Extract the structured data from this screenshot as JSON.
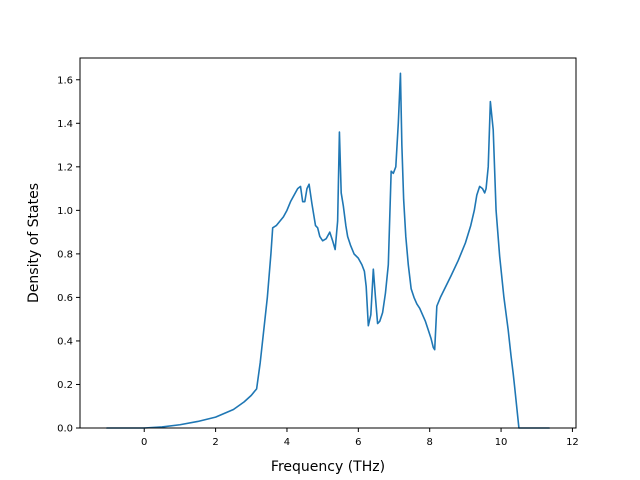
{
  "chart_data": {
    "type": "line",
    "title": "",
    "xlabel": "Frequency (THz)",
    "ylabel": "Density of States",
    "xlim": [
      -1.8,
      12.1
    ],
    "ylim": [
      0.0,
      1.7
    ],
    "xticks": [
      0,
      2,
      4,
      6,
      8,
      10,
      12
    ],
    "yticks": [
      0.0,
      0.2,
      0.4,
      0.6,
      0.8,
      1.0,
      1.2,
      1.4,
      1.6
    ],
    "xtick_labels": [
      "0",
      "2",
      "4",
      "6",
      "8",
      "10",
      "12"
    ],
    "ytick_labels": [
      "0.0",
      "0.2",
      "0.4",
      "0.6",
      "0.8",
      "1.0",
      "1.2",
      "1.4",
      "1.6"
    ],
    "grid": false,
    "series": [
      {
        "color": "#1f77b4",
        "x": [
          -1.05,
          -0.5,
          0.0,
          0.5,
          1.0,
          1.5,
          2.0,
          2.5,
          2.8,
          3.0,
          3.15,
          3.25,
          3.35,
          3.45,
          3.55,
          3.6,
          3.7,
          3.8,
          3.9,
          4.0,
          4.1,
          4.2,
          4.3,
          4.38,
          4.44,
          4.5,
          4.56,
          4.62,
          4.7,
          4.8,
          4.86,
          4.92,
          5.0,
          5.1,
          5.2,
          5.28,
          5.35,
          5.42,
          5.47,
          5.52,
          5.58,
          5.65,
          5.7,
          5.78,
          5.88,
          6.0,
          6.1,
          6.17,
          6.22,
          6.28,
          6.35,
          6.42,
          6.48,
          6.54,
          6.6,
          6.68,
          6.76,
          6.84,
          6.92,
          6.98,
          7.05,
          7.12,
          7.18,
          7.22,
          7.27,
          7.33,
          7.4,
          7.48,
          7.56,
          7.64,
          7.72,
          7.8,
          7.88,
          7.96,
          8.04,
          8.1,
          8.14,
          8.2,
          8.3,
          8.45,
          8.6,
          8.8,
          9.0,
          9.15,
          9.25,
          9.32,
          9.4,
          9.48,
          9.54,
          9.58,
          9.64,
          9.7,
          9.78,
          9.86,
          9.96,
          10.08,
          10.2,
          10.28,
          10.34,
          10.38,
          10.5,
          11.0,
          11.35
        ],
        "y": [
          0.0,
          0.0,
          0.0,
          0.005,
          0.015,
          0.03,
          0.05,
          0.085,
          0.12,
          0.15,
          0.18,
          0.3,
          0.45,
          0.6,
          0.8,
          0.92,
          0.93,
          0.95,
          0.97,
          1.0,
          1.04,
          1.07,
          1.1,
          1.11,
          1.04,
          1.04,
          1.1,
          1.12,
          1.03,
          0.93,
          0.92,
          0.88,
          0.86,
          0.87,
          0.9,
          0.86,
          0.82,
          0.95,
          1.36,
          1.08,
          1.02,
          0.93,
          0.88,
          0.84,
          0.8,
          0.78,
          0.75,
          0.72,
          0.65,
          0.47,
          0.52,
          0.73,
          0.6,
          0.48,
          0.49,
          0.53,
          0.62,
          0.75,
          1.18,
          1.17,
          1.2,
          1.4,
          1.63,
          1.3,
          1.05,
          0.88,
          0.75,
          0.64,
          0.6,
          0.57,
          0.55,
          0.52,
          0.49,
          0.45,
          0.41,
          0.37,
          0.36,
          0.56,
          0.6,
          0.65,
          0.7,
          0.77,
          0.85,
          0.93,
          1.0,
          1.07,
          1.11,
          1.1,
          1.08,
          1.1,
          1.2,
          1.5,
          1.37,
          1.0,
          0.79,
          0.6,
          0.45,
          0.33,
          0.25,
          0.19,
          0.0,
          0.0,
          0.0
        ]
      }
    ]
  }
}
